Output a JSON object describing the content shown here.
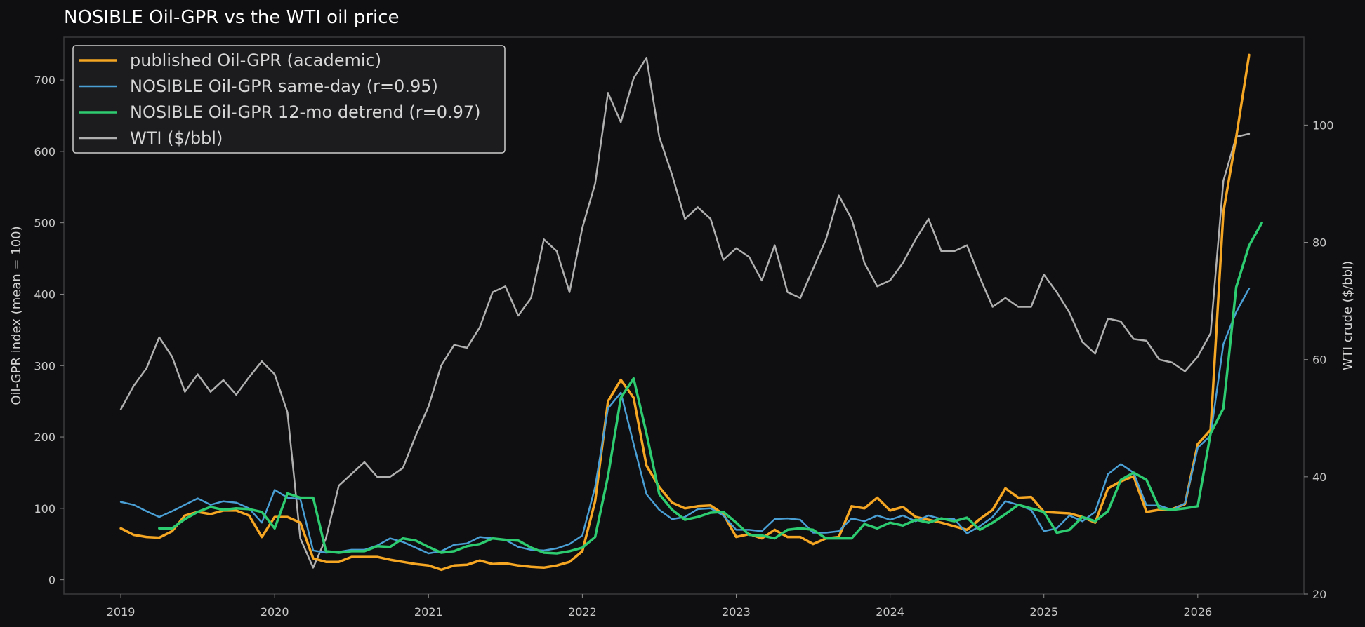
{
  "chart_data": {
    "type": "line",
    "title": "NOSIBLE Oil-GPR vs the WTI oil price",
    "ylabel_left": "Oil-GPR index (mean = 100)",
    "ylabel_right": "WTI crude ($/bbl)",
    "ylim_left": [
      -20,
      760
    ],
    "ylim_right": [
      20,
      115
    ],
    "yticks_left": [
      0,
      100,
      200,
      300,
      400,
      500,
      600,
      700
    ],
    "yticks_right": [
      20,
      40,
      60,
      80,
      100
    ],
    "xlim": [
      2018.63,
      2026.69
    ],
    "xticks": [
      {
        "value": 2019,
        "label": "2019"
      },
      {
        "value": 2020,
        "label": "2020"
      },
      {
        "value": 2021,
        "label": "2021"
      },
      {
        "value": 2022,
        "label": "2022"
      },
      {
        "value": 2023,
        "label": "2023"
      },
      {
        "value": 2024,
        "label": "2024"
      },
      {
        "value": 2025,
        "label": "2025"
      },
      {
        "value": 2026,
        "label": "2026"
      }
    ],
    "legend_position": "top-left",
    "grid": false,
    "series": [
      {
        "name": "published Oil-GPR (academic)",
        "axis": "left",
        "color": "#f5a623",
        "width": 3.5,
        "start": "2019-01",
        "values": [
          72,
          63,
          60,
          59,
          68,
          90,
          95,
          92,
          97,
          97,
          90,
          60,
          88,
          88,
          80,
          30,
          25,
          25,
          32,
          32,
          32,
          28,
          25,
          22,
          20,
          14,
          20,
          21,
          27,
          22,
          23,
          20,
          18,
          17,
          20,
          25,
          40,
          110,
          250,
          280,
          255,
          160,
          130,
          108,
          100,
          103,
          104,
          92,
          60,
          64,
          58,
          70,
          60,
          60,
          50,
          58,
          60,
          103,
          100,
          115,
          97,
          102,
          88,
          84,
          80,
          75,
          70,
          85,
          98,
          128,
          115,
          116,
          95,
          94,
          93,
          88,
          80,
          128,
          138,
          145,
          95,
          98,
          99,
          106,
          190,
          210,
          515,
          620,
          735
        ]
      },
      {
        "name": "NOSIBLE Oil-GPR same-day (r=0.95)",
        "axis": "left",
        "color": "#4a9fd4",
        "width": 2.5,
        "start": "2019-01",
        "values": [
          109,
          105,
          96,
          88,
          96,
          105,
          114,
          105,
          110,
          108,
          100,
          80,
          126,
          115,
          113,
          41,
          38,
          39,
          42,
          42,
          48,
          58,
          53,
          45,
          37,
          40,
          49,
          51,
          60,
          58,
          56,
          46,
          42,
          41,
          44,
          50,
          62,
          130,
          240,
          262,
          190,
          120,
          98,
          85,
          88,
          99,
          100,
          90,
          70,
          70,
          68,
          85,
          86,
          84,
          66,
          66,
          68,
          86,
          82,
          90,
          84,
          90,
          82,
          90,
          85,
          85,
          65,
          75,
          88,
          110,
          105,
          98,
          68,
          72,
          90,
          82,
          95,
          148,
          162,
          150,
          104,
          104,
          98,
          107,
          185,
          202,
          330,
          375,
          408
        ]
      },
      {
        "name": "NOSIBLE Oil-GPR 12-mo detrend (r=0.97)",
        "axis": "left",
        "color": "#2ecc71",
        "width": 3.5,
        "start": "2019-04",
        "values": [
          72,
          72,
          85,
          95,
          102,
          98,
          100,
          99,
          95,
          72,
          121,
          115,
          115,
          40,
          38,
          40,
          40,
          47,
          46,
          58,
          55,
          46,
          38,
          40,
          47,
          50,
          58,
          56,
          55,
          45,
          38,
          37,
          40,
          45,
          60,
          145,
          255,
          282,
          205,
          120,
          98,
          84,
          88,
          94,
          95,
          80,
          63,
          62,
          58,
          70,
          72,
          70,
          58,
          58,
          58,
          78,
          72,
          80,
          76,
          84,
          80,
          86,
          82,
          87,
          70,
          80,
          92,
          105,
          100,
          95,
          66,
          70,
          88,
          82,
          96,
          140,
          150,
          140,
          100,
          98,
          100,
          103,
          205,
          240,
          410,
          468,
          500
        ]
      },
      {
        "name": "WTI ($/bbl)",
        "axis": "right",
        "color": "#b0b0b0",
        "width": 2.5,
        "start": "2019-01",
        "values": [
          51.5,
          55.5,
          58.5,
          63.8,
          60.5,
          54.5,
          57.5,
          54.5,
          56.5,
          54.0,
          57.0,
          59.7,
          57.5,
          51.0,
          29.5,
          24.5,
          29.5,
          38.5,
          40.5,
          42.5,
          40.0,
          40.0,
          41.5,
          47.0,
          52.0,
          59.0,
          62.5,
          62.0,
          65.5,
          71.5,
          72.5,
          67.5,
          70.5,
          80.5,
          78.5,
          71.5,
          82.5,
          90.0,
          105.5,
          100.5,
          108.0,
          111.5,
          98.0,
          91.5,
          84.0,
          86.0,
          84.0,
          77.0,
          79.0,
          77.5,
          73.5,
          79.5,
          71.5,
          70.5,
          75.5,
          80.5,
          88.0,
          84.0,
          76.5,
          72.5,
          73.5,
          76.5,
          80.5,
          84.0,
          78.5,
          78.5,
          79.5,
          74.0,
          69.0,
          70.5,
          69.0,
          69.0,
          74.5,
          71.5,
          68.0,
          63.0,
          61.0,
          67.0,
          66.5,
          63.5,
          63.2,
          60.0,
          59.5,
          58.0,
          60.5,
          64.5,
          90.5,
          98.0,
          98.5
        ]
      }
    ]
  }
}
